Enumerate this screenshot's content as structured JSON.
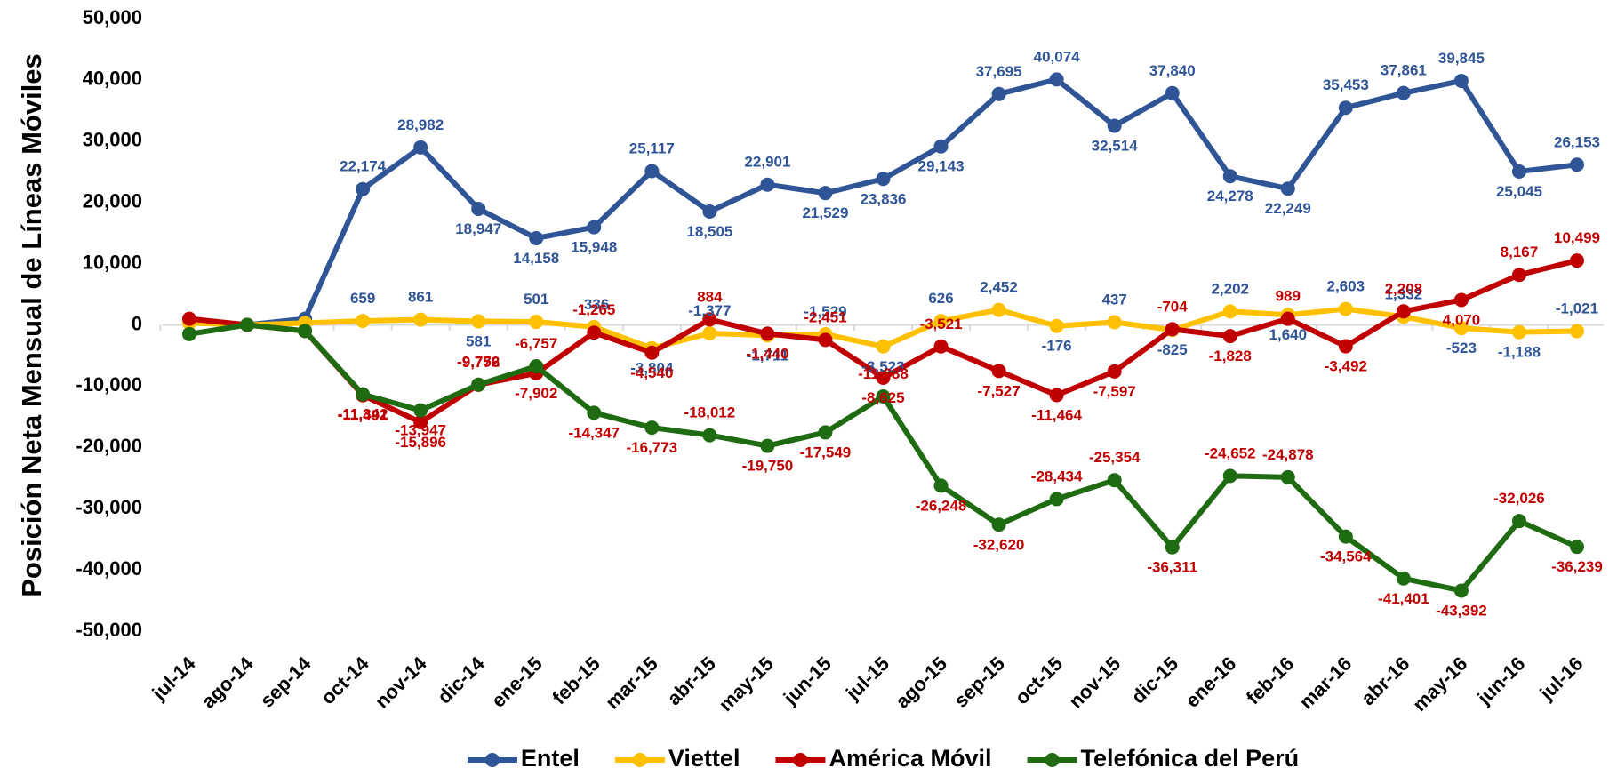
{
  "chart_data": {
    "type": "line",
    "y_label": "Posición Neta Mensual de Líneas Móviles",
    "categories": [
      "jul-14",
      "ago-14",
      "sep-14",
      "oct-14",
      "nov-14",
      "dic-14",
      "ene-15",
      "feb-15",
      "mar-15",
      "abr-15",
      "may-15",
      "jun-15",
      "jul-15",
      "ago-15",
      "sep-15",
      "oct-15",
      "nov-15",
      "dic-15",
      "ene-16",
      "feb-16",
      "mar-16",
      "abr-16",
      "may-16",
      "jun-16",
      "jul-16"
    ],
    "ylim": [
      -50000,
      50000
    ],
    "yticks": [
      {
        "value": -50000,
        "label": "-50,000"
      },
      {
        "value": -40000,
        "label": "-40,000"
      },
      {
        "value": -30000,
        "label": "-30,000"
      },
      {
        "value": -20000,
        "label": "-20,000"
      },
      {
        "value": -10000,
        "label": "-10,000"
      },
      0,
      {
        "value": 10000,
        "label": "10,000"
      },
      {
        "value": 20000,
        "label": "20,000"
      },
      {
        "value": 30000,
        "label": "30,000"
      },
      {
        "value": 40000,
        "label": "40,000"
      },
      {
        "value": 50000,
        "label": "50,000"
      }
    ],
    "series": [
      {
        "name": "Entel",
        "color": "#2f5597",
        "label_color": "#2f5597",
        "values": [
          null,
          0,
          1000,
          22174,
          28982,
          18947,
          14158,
          15948,
          25117,
          18505,
          22901,
          21529,
          23836,
          29143,
          37695,
          40074,
          32514,
          37840,
          24278,
          22249,
          35453,
          37861,
          39845,
          25045,
          26153
        ],
        "value_labels": [
          null,
          null,
          null,
          "22,174",
          "28,982",
          "18,947",
          "14,158",
          "15,948",
          "25,117",
          "18,505",
          "22,901",
          "21,529",
          "23,836",
          "29,143",
          "37,695",
          "40,074",
          "32,514",
          "37,840",
          "24,278",
          "22,249",
          "35,453",
          "37,861",
          "39,845",
          "25,045",
          "26,153"
        ]
      },
      {
        "name": "Viettel",
        "color": "#ffc000",
        "label_color": "#2f5597",
        "values": [
          300,
          0,
          300,
          659,
          861,
          581,
          501,
          -336,
          -3804,
          -1377,
          -1711,
          -1529,
          -3523,
          626,
          2452,
          -176,
          437,
          -825,
          2202,
          1640,
          2603,
          1332,
          -523,
          -1188,
          -1021
        ],
        "value_labels": [
          null,
          null,
          null,
          "659",
          "861",
          "581",
          "501",
          "-336",
          "-3,804",
          "-1,377",
          "-1,711",
          "-1,529",
          "-3,523",
          "626",
          "2,452",
          "-176",
          "437",
          "-825",
          "2,202",
          "1,640",
          "2,603",
          "1,332",
          "-523",
          "-1,188",
          "-1,021"
        ]
      },
      {
        "name": "América Móvil",
        "color": "#c00000",
        "label_color": "#c00000",
        "values": [
          1000,
          0,
          -1000,
          -11491,
          -15896,
          -9776,
          -7902,
          -1265,
          -4540,
          884,
          -1440,
          -2451,
          -8625,
          -3521,
          -7527,
          -11464,
          -7597,
          -704,
          -1828,
          989,
          -3492,
          2208,
          4070,
          8167,
          10499
        ],
        "value_labels": [
          null,
          null,
          null,
          "-11,491",
          "-15,896",
          "-9,776",
          "-7,902",
          "-1,265",
          "-4,540",
          "884",
          "-1,440",
          "-2,451",
          "-8,625",
          "-3,521",
          "-7,527",
          "-11,464",
          "-7,597",
          "-704",
          "-1,828",
          "989",
          "-3,492",
          "2,208",
          "4,070",
          "8,167",
          "10,499"
        ]
      },
      {
        "name": "Telefónica del Perú",
        "color": "#1e6b12",
        "label_color": "#c00000",
        "values": [
          -1500,
          0,
          -1000,
          -11342,
          -13947,
          -9752,
          -6757,
          -14347,
          -16773,
          -18012,
          -19750,
          -17549,
          -11688,
          -26248,
          -32620,
          -28434,
          -25354,
          -36311,
          -24652,
          -24878,
          -34564,
          -41401,
          -43392,
          -32026,
          -36239
        ],
        "value_labels": [
          null,
          null,
          null,
          "-11,342",
          "-13,947",
          "-9,752",
          "-6,757",
          "-14,347",
          "-16,773",
          "-18,012",
          "-19,750",
          "-17,549",
          "-11,688",
          "-26,248",
          "-32,620",
          "-28,434",
          "-25,354",
          "-36,311",
          "-24,652",
          "-24,878",
          "-34,564",
          "-41,401",
          "-43,392",
          "-32,026",
          "-36,239"
        ]
      }
    ]
  }
}
